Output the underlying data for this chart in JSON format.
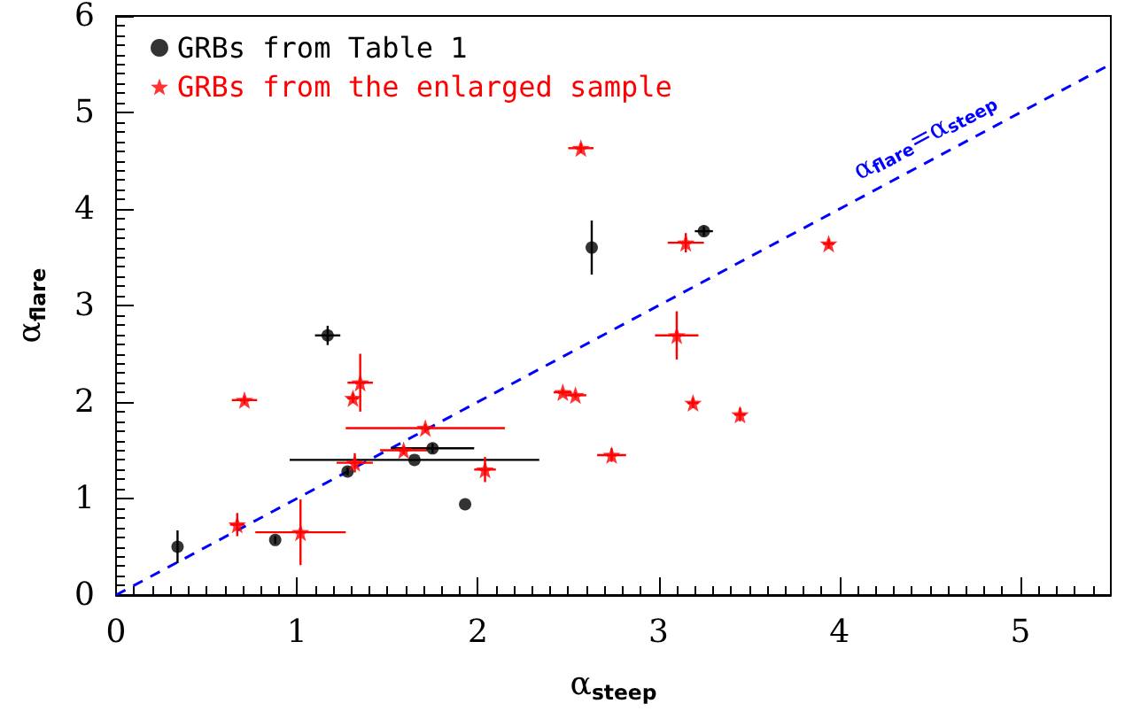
{
  "chart_data": {
    "type": "scatter",
    "xlabel": "α$_{steep}$",
    "ylabel": "α$_{flare}$",
    "xlim": [
      0,
      5.5
    ],
    "ylim": [
      0,
      6
    ],
    "xticks": [
      0,
      1,
      2,
      3,
      4,
      5
    ],
    "yticks": [
      0,
      1,
      2,
      3,
      4,
      5,
      6
    ],
    "grid": false,
    "legend": "top left",
    "series": [
      {
        "name": "GRBs from Table 1",
        "color": "#000000",
        "marker": "circle",
        "x": [
          0.34,
          0.88,
          1.17,
          1.28,
          1.65,
          1.75,
          1.93,
          2.63,
          3.25
        ],
        "values": [
          0.5,
          0.57,
          2.69,
          1.28,
          1.4,
          1.52,
          0.94,
          3.6,
          3.77
        ],
        "errors": [
          0.17,
          0.04,
          0.1,
          0.04,
          null,
          0.05,
          null,
          0.28,
          0.05
        ],
        "xerrors": [
          null,
          null,
          0.07,
          null,
          0.69,
          0.23,
          null,
          null,
          0.05
        ]
      },
      {
        "name": "GRBs from the enlarged sample",
        "color": "#ff0000",
        "marker": "star",
        "x": [
          0.71,
          0.67,
          1.02,
          1.31,
          1.35,
          1.32,
          1.59,
          1.71,
          2.04,
          2.47,
          2.54,
          2.74,
          2.57,
          3.15,
          3.94,
          3.1,
          3.19,
          3.45
        ],
        "values": [
          2.02,
          0.73,
          0.65,
          2.04,
          2.2,
          1.37,
          1.5,
          1.73,
          1.3,
          2.1,
          2.07,
          1.45,
          4.63,
          3.65,
          3.64,
          2.69,
          1.99,
          1.87
        ],
        "errors": [
          0.04,
          0.12,
          0.34,
          0.05,
          0.3,
          0.1,
          0.04,
          0.04,
          0.13,
          0.03,
          0.03,
          0.07,
          0.05,
          0.1,
          0.05,
          0.25,
          0.05,
          0.07
        ],
        "xerrors": [
          0.07,
          0.04,
          0.25,
          0.03,
          0.07,
          0.1,
          0.13,
          0.44,
          0.06,
          0.05,
          0.06,
          0.08,
          0.07,
          0.1,
          0.03,
          0.12,
          0.03,
          0.03
        ]
      },
      {
        "type": "line",
        "name": "α$_{flare}$=α$_{steep}$",
        "color": "#0000ff",
        "line_style": "dashed",
        "marker": "none",
        "x": [
          0,
          5.5
        ],
        "values": [
          0,
          5.5
        ]
      }
    ]
  }
}
